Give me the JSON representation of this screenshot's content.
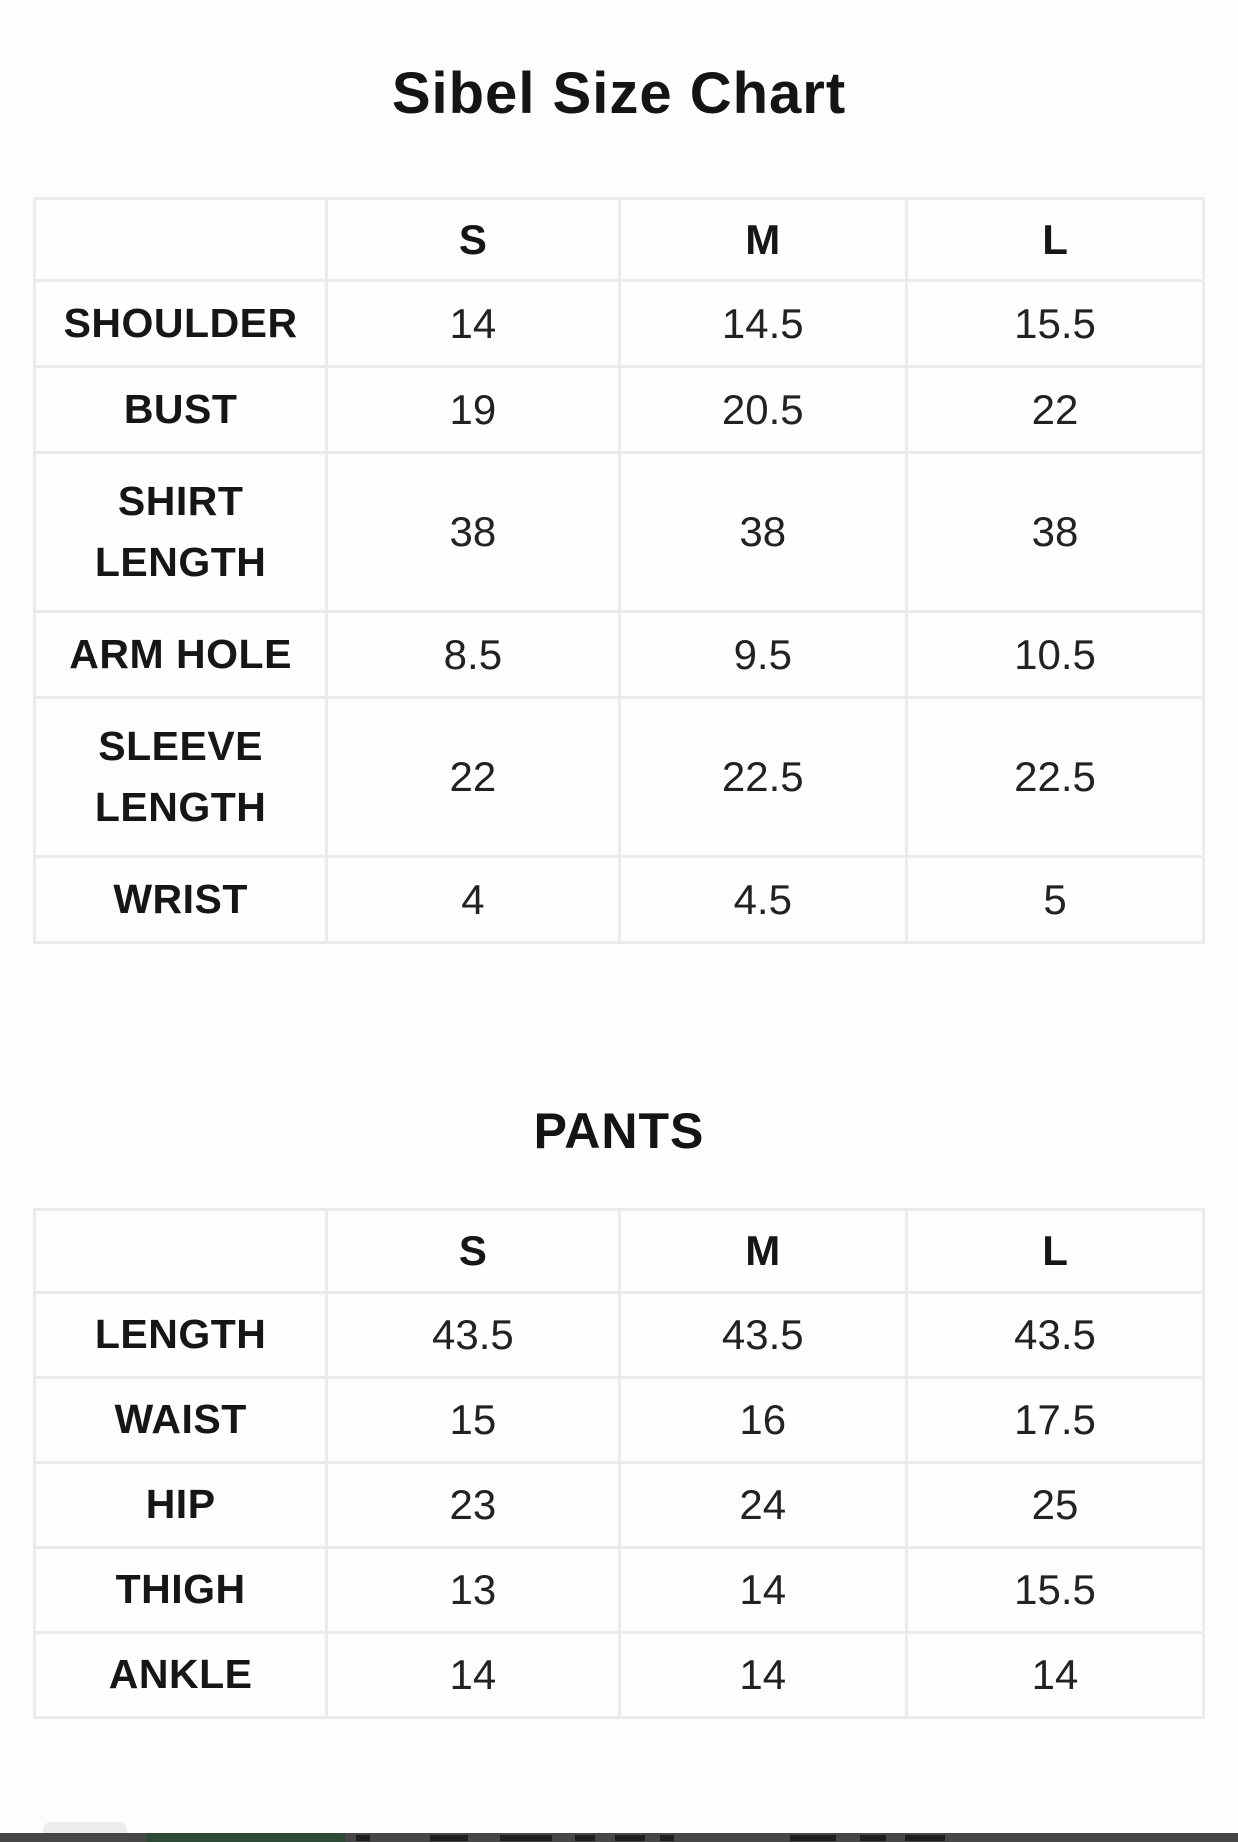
{
  "page": {
    "title": "Sibel Size Chart",
    "pants_section_title": "PANTS"
  },
  "colors": {
    "background": "#fdfdfd",
    "table_border": "#ebebeb",
    "text": "#1b1b1b",
    "footer_strip": "#474747",
    "footer_green_patch": "#2e4a34"
  },
  "tables": [
    {
      "name": "shirt-size-table",
      "columns": [
        "",
        "S",
        "M",
        "L"
      ],
      "rows": [
        {
          "label": "SHOULDER",
          "values": [
            "14",
            "14.5",
            "15.5"
          ]
        },
        {
          "label": "BUST",
          "values": [
            "19",
            "20.5",
            "22"
          ]
        },
        {
          "label": "SHIRT LENGTH",
          "values": [
            "38",
            "38",
            "38"
          ]
        },
        {
          "label": "ARM HOLE",
          "values": [
            "8.5",
            "9.5",
            "10.5"
          ]
        },
        {
          "label": "SLEEVE LENGTH",
          "values": [
            "22",
            "22.5",
            "22.5"
          ]
        },
        {
          "label": "WRIST",
          "values": [
            "4",
            "4.5",
            "5"
          ]
        }
      ]
    },
    {
      "name": "pants-size-table",
      "columns": [
        "",
        "S",
        "M",
        "L"
      ],
      "rows": [
        {
          "label": "LENGTH",
          "values": [
            "43.5",
            "43.5",
            "43.5"
          ]
        },
        {
          "label": "WAIST",
          "values": [
            "15",
            "16",
            "17.5"
          ]
        },
        {
          "label": "HIP",
          "values": [
            "23",
            "24",
            "25"
          ]
        },
        {
          "label": "THIGH",
          "values": [
            "13",
            "14",
            "15.5"
          ]
        },
        {
          "label": "ANKLE",
          "values": [
            "14",
            "14",
            "14"
          ]
        }
      ]
    }
  ]
}
